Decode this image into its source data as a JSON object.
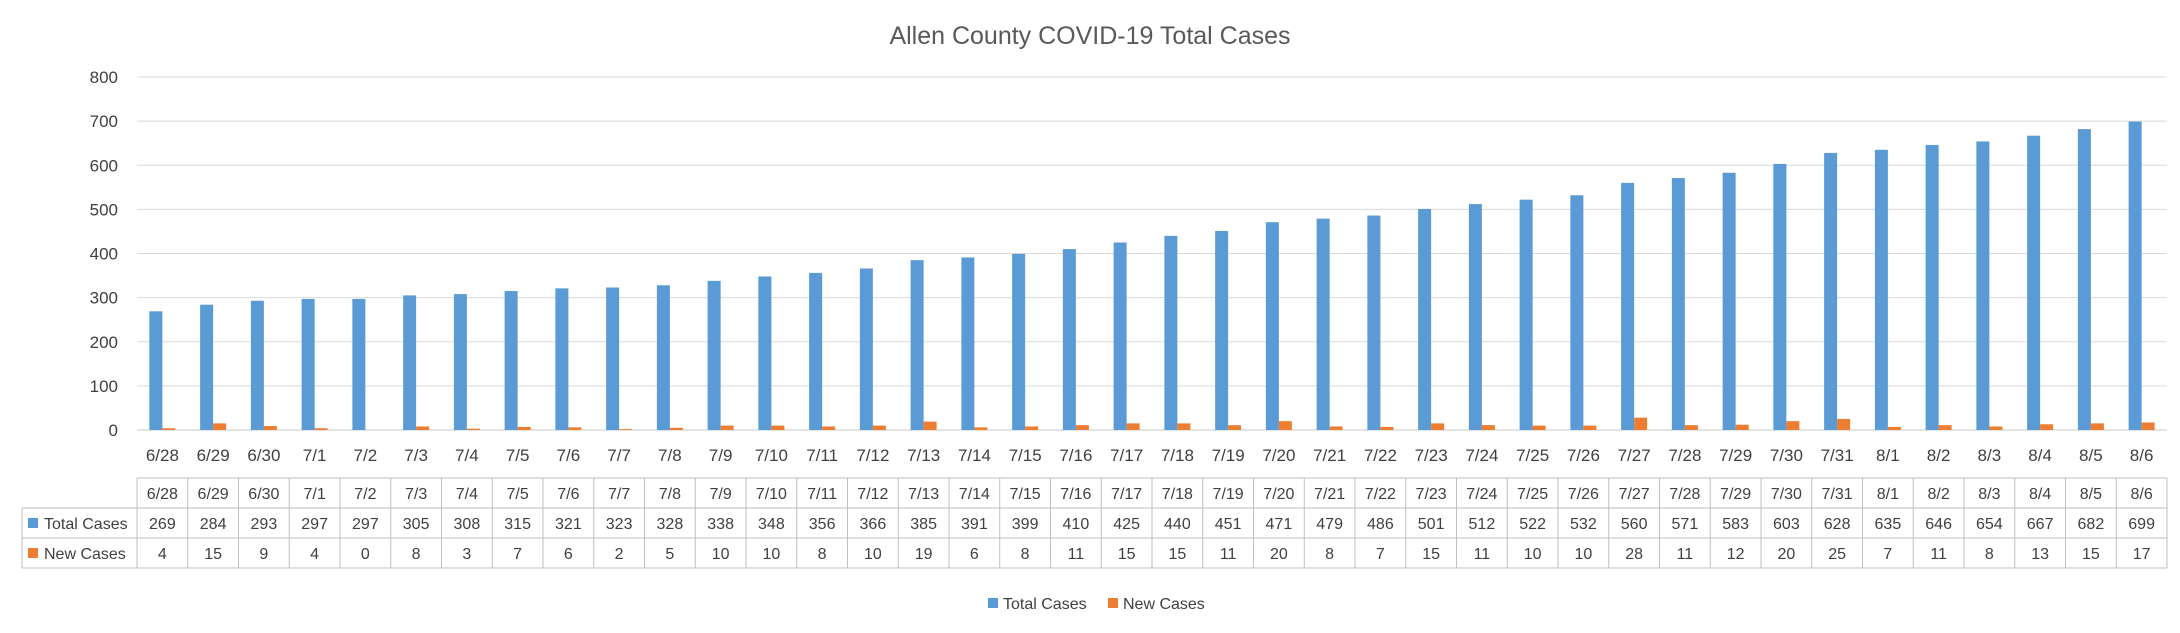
{
  "chart_data": {
    "type": "bar",
    "title": "Allen County COVID-19 Total Cases",
    "categories": [
      "6/28",
      "6/29",
      "6/30",
      "7/1",
      "7/2",
      "7/3",
      "7/4",
      "7/5",
      "7/6",
      "7/7",
      "7/8",
      "7/9",
      "7/10",
      "7/11",
      "7/12",
      "7/13",
      "7/14",
      "7/15",
      "7/16",
      "7/17",
      "7/18",
      "7/19",
      "7/20",
      "7/21",
      "7/22",
      "7/23",
      "7/24",
      "7/25",
      "7/26",
      "7/27",
      "7/28",
      "7/29",
      "7/30",
      "7/31",
      "8/1",
      "8/2",
      "8/3",
      "8/4",
      "8/5",
      "8/6"
    ],
    "series": [
      {
        "name": "Total Cases",
        "color": "#5B9BD5",
        "values": [
          269,
          284,
          293,
          297,
          297,
          305,
          308,
          315,
          321,
          323,
          328,
          338,
          348,
          356,
          366,
          385,
          391,
          399,
          410,
          425,
          440,
          451,
          471,
          479,
          486,
          501,
          512,
          522,
          532,
          560,
          571,
          583,
          603,
          628,
          635,
          646,
          654,
          667,
          682,
          699
        ]
      },
      {
        "name": "New Cases",
        "color": "#ED7D31",
        "values": [
          4,
          15,
          9,
          4,
          0,
          8,
          3,
          7,
          6,
          2,
          5,
          10,
          10,
          8,
          10,
          19,
          6,
          8,
          11,
          15,
          15,
          11,
          20,
          8,
          7,
          15,
          11,
          10,
          10,
          28,
          11,
          12,
          20,
          25,
          7,
          11,
          8,
          13,
          15,
          17
        ]
      }
    ],
    "ylim": [
      0,
      800
    ],
    "yticks": [
      0,
      100,
      200,
      300,
      400,
      500,
      600,
      700,
      800
    ],
    "grid": true,
    "data_table": true,
    "legend": "bottom-center"
  }
}
